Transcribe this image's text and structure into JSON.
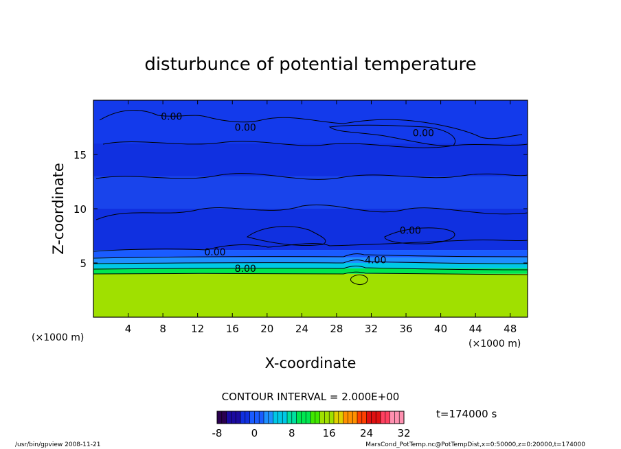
{
  "chart_data": {
    "type": "heatmap",
    "title": "disturbunce of potential temperature",
    "xlabel": "X-coordinate",
    "ylabel": "Z-coordinate",
    "x_unit_left": "(×1000 m)",
    "x_unit_right": "(×1000 m)",
    "xlim": [
      0,
      50
    ],
    "ylim": [
      0,
      20
    ],
    "x_ticks": [
      4,
      8,
      12,
      16,
      20,
      24,
      28,
      32,
      36,
      40,
      44,
      48
    ],
    "y_ticks": [
      5,
      10,
      15
    ],
    "contour_interval_label": "CONTOUR INTERVAL = 2.000E+00",
    "time_label": "t=174000 s",
    "colorbar": {
      "min": -8,
      "max": 32,
      "ticks": [
        -8,
        0,
        8,
        16,
        24,
        32
      ],
      "colors": [
        "#2a0050",
        "#1a0aa0",
        "#1030e0",
        "#1a5cff",
        "#1e90ff",
        "#00c8e6",
        "#00e0a0",
        "#00e650",
        "#40e800",
        "#a0e000",
        "#e0d000",
        "#ff9000",
        "#ff4000",
        "#e01010",
        "#ff4060",
        "#ff90b0"
      ]
    },
    "contour_labels": [
      {
        "text": "0.00",
        "x": 9.0,
        "z": 18.5
      },
      {
        "text": "0.00",
        "x": 17.5,
        "z": 17.5
      },
      {
        "text": "0.00",
        "x": 38.0,
        "z": 17.0
      },
      {
        "text": "0.00",
        "x": 36.5,
        "z": 8.0
      },
      {
        "text": "0.00",
        "x": 14.0,
        "z": 6.0
      },
      {
        "text": "4.00",
        "x": 32.5,
        "z": 5.3
      },
      {
        "text": "8.00",
        "x": 17.5,
        "z": 4.5
      }
    ],
    "field_description_rows": [
      {
        "z_from": 0.0,
        "z_to": 4.0,
        "value": 16
      },
      {
        "z_from": 4.0,
        "z_to": 4.5,
        "value": 10
      },
      {
        "z_from": 4.5,
        "z_to": 5.0,
        "value": 6
      },
      {
        "z_from": 5.0,
        "z_to": 5.5,
        "value": 3
      },
      {
        "z_from": 5.5,
        "z_to": 6.2,
        "value": 1
      },
      {
        "z_from": 6.2,
        "z_to": 20.0,
        "value": -1
      }
    ]
  },
  "footer": {
    "left": "/usr/bin/gpview   2008-11-21",
    "right": "MarsCond_PotTemp.nc@PotTempDist,x=0:50000,z=0:20000,t=174000"
  }
}
